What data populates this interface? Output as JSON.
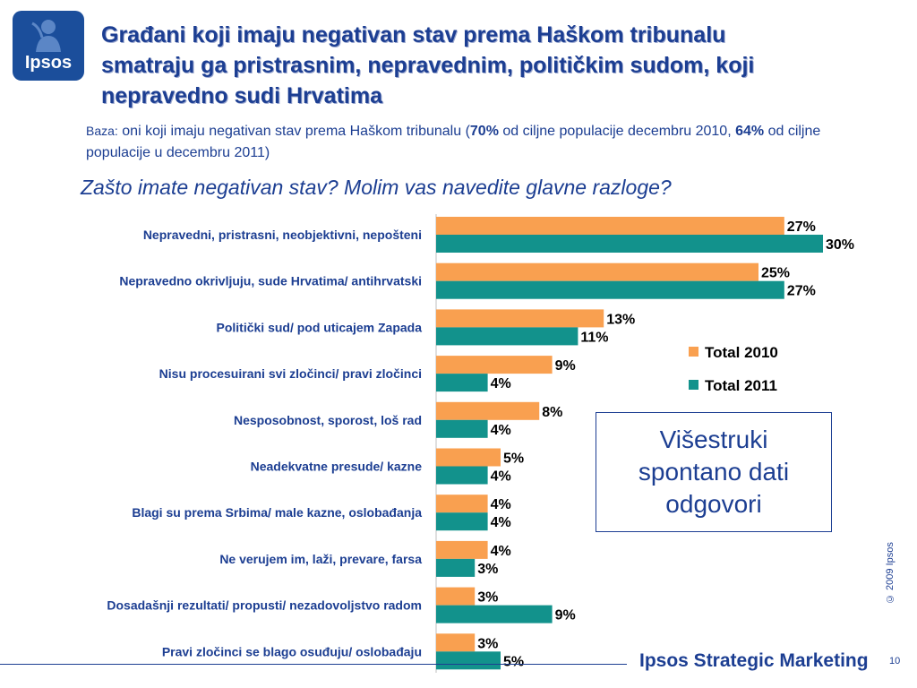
{
  "logo": {
    "text": "Ipsos"
  },
  "title": "Građani koji imaju negativan stav prema Haškom tribunalu smatraju ga pristrasnim, nepravednim, političkim sudom, koji nepravedno sudi Hrvatima",
  "base": {
    "prefix": "Baza:",
    "text1": "oni koji imaju negativan stav prema Haškom tribunalu (",
    "pct2010": "70%",
    "text2": " od ciljne populacije decembru 2010, ",
    "pct2011": "64%",
    "text3": " od ciljne populacije u decembru 2011)"
  },
  "question": "Zašto imate negativan stav? Molim vas navedite glavne razloge?",
  "note": "Višestruki spontano dati odgovori",
  "copyright": "© 2009 Ipsos",
  "footer": {
    "brand": "Ipsos Strategic Marketing",
    "page": "10"
  },
  "colors": {
    "total2010": "#f9a050",
    "total2011": "#12928c",
    "text": "#1c3e92"
  },
  "chart_data": {
    "type": "bar",
    "orientation": "horizontal",
    "categories": [
      "Nepravedni, pristrasni, neobjektivni, nepošteni",
      "Nepravedno okrivljuju, sude Hrvatima/ antihrvatski",
      "Politički sud/ pod uticajem Zapada",
      "Nisu procesuirani svi zločinci/ pravi zločinci",
      "Nesposobnost, sporost, loš rad",
      "Neadekvatne presude/ kazne",
      "Blagi su prema Srbima/ male kazne, oslobađanja",
      "Ne verujem im, laži, prevare, farsa",
      "Dosadašnji rezultati/ propusti/ nezadovoljstvo radom",
      "Pravi zločinci se blago osuđuju/ oslobađaju"
    ],
    "series": [
      {
        "name": "Total 2010",
        "color": "#f9a050",
        "values": [
          27,
          25,
          13,
          9,
          8,
          5,
          4,
          4,
          3,
          3
        ]
      },
      {
        "name": "Total 2011",
        "color": "#12928c",
        "values": [
          30,
          27,
          11,
          4,
          4,
          4,
          4,
          3,
          9,
          5
        ]
      }
    ],
    "value_suffix": "%",
    "legend_position": "right",
    "xlim": [
      0,
      30
    ],
    "grid": false
  }
}
